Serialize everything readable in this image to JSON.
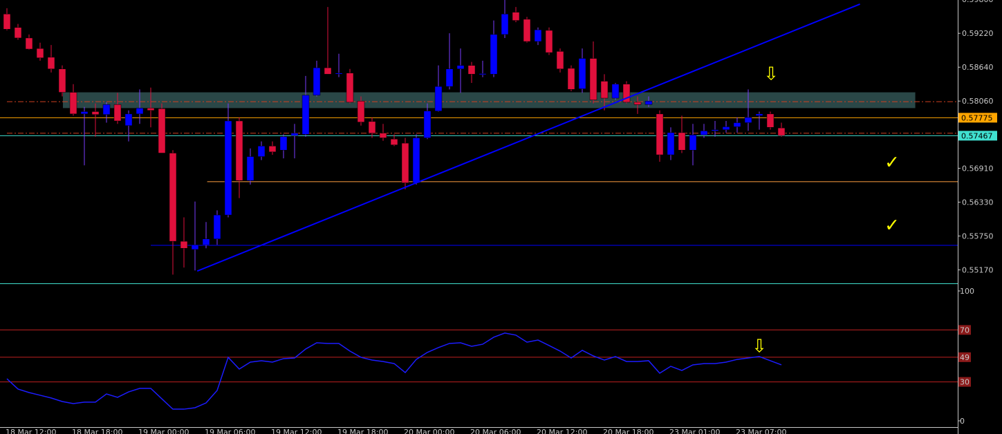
{
  "chart_data": [
    {
      "type": "candlestick",
      "bull_color": "#0000ff",
      "bear_color": "#e0103c",
      "categories": [
        "18 Mar 12:00",
        null,
        null,
        null,
        null,
        null,
        "18 Mar 18:00",
        null,
        null,
        null,
        null,
        null,
        "19 Mar 00:00",
        null,
        null,
        null,
        null,
        null,
        "19 Mar 06:00",
        null,
        null,
        null,
        null,
        null,
        "19 Mar 12:00",
        null,
        null,
        null,
        null,
        null,
        "19 Mar 18:00",
        null,
        null,
        null,
        null,
        null,
        "20 Mar 00:00",
        null,
        null,
        null,
        null,
        null,
        "20 Mar 06:00",
        null,
        null,
        null,
        null,
        null,
        "20 Mar 12:00",
        null,
        null,
        null,
        null,
        null,
        "20 Mar 18:00",
        null,
        null,
        null,
        null,
        null,
        "23 Mar 01:00",
        null,
        null,
        null,
        null,
        null,
        "23 Mar 07:00",
        null,
        null,
        null,
        null
      ],
      "open": [
        0.5955,
        0.5932,
        0.5914,
        0.5896,
        0.5881,
        0.5861,
        0.5821,
        0.5784,
        0.5788,
        0.5783,
        0.58,
        0.5764,
        0.5784,
        0.5794,
        0.5793,
        0.5717,
        0.5566,
        0.5552,
        0.556,
        0.557,
        0.5611,
        0.5772,
        0.567,
        0.5711,
        0.5729,
        0.5722,
        0.5747,
        0.5749,
        0.5816,
        0.5863,
        0.5853,
        0.5854,
        0.5806,
        0.5771,
        0.5751,
        0.5741,
        0.5734,
        0.5666,
        0.5743,
        0.5789,
        0.5831,
        0.5861,
        0.5867,
        0.5852,
        0.5852,
        0.592,
        0.5958,
        0.5946,
        0.5908,
        0.5927,
        0.5891,
        0.5862,
        0.5827,
        0.5879,
        0.584,
        0.5811,
        0.5835,
        0.5804,
        0.58,
        0.5784,
        0.5714,
        0.5752,
        0.5722,
        0.5748,
        0.5755,
        0.5757,
        0.5762,
        0.5769,
        0.5781,
        0.5784,
        0.576
      ],
      "high": [
        0.5965,
        0.5938,
        0.592,
        0.5906,
        0.5902,
        0.5867,
        0.5835,
        0.5796,
        0.5802,
        0.5804,
        0.582,
        0.579,
        0.5826,
        0.5829,
        0.5802,
        0.5722,
        0.5607,
        0.5634,
        0.5599,
        0.5619,
        0.5802,
        0.5778,
        0.5725,
        0.5737,
        0.5737,
        0.5749,
        0.5767,
        0.5849,
        0.5875,
        0.5967,
        0.5887,
        0.5861,
        0.5814,
        0.5778,
        0.5767,
        0.5749,
        0.5743,
        0.5749,
        0.5802,
        0.5867,
        0.5922,
        0.5896,
        0.5873,
        0.5875,
        0.5944,
        0.5979,
        0.5967,
        0.595,
        0.5932,
        0.5932,
        0.5896,
        0.5867,
        0.5896,
        0.5908,
        0.5852,
        0.5837,
        0.584,
        0.5814,
        0.5814,
        0.579,
        0.5761,
        0.5781,
        0.5767,
        0.5767,
        0.5772,
        0.5772,
        0.5778,
        0.5826,
        0.5788,
        0.5788,
        0.5769
      ],
      "low": [
        0.5927,
        0.5911,
        0.5894,
        0.5875,
        0.5855,
        0.5814,
        0.5781,
        0.5696,
        0.5745,
        0.5769,
        0.5767,
        0.5737,
        0.5767,
        0.5761,
        0.5717,
        0.5509,
        0.5521,
        0.5516,
        0.5554,
        0.556,
        0.5607,
        0.564,
        0.5663,
        0.5705,
        0.5714,
        0.5708,
        0.5708,
        0.5745,
        0.5814,
        0.5852,
        0.5847,
        0.5802,
        0.5764,
        0.5743,
        0.5738,
        0.5729,
        0.5655,
        0.5663,
        0.5741,
        0.5788,
        0.5826,
        0.582,
        0.5837,
        0.5847,
        0.5847,
        0.5914,
        0.5941,
        0.5906,
        0.5902,
        0.5885,
        0.5855,
        0.5823,
        0.582,
        0.5802,
        0.579,
        0.5808,
        0.5802,
        0.5784,
        0.5796,
        0.5702,
        0.5705,
        0.5717,
        0.5696,
        0.5743,
        0.5745,
        0.5752,
        0.5752,
        0.5755,
        0.5757,
        0.5757,
        0.5745
      ],
      "close": [
        0.5929,
        0.5914,
        0.5895,
        0.588,
        0.5861,
        0.5821,
        0.5784,
        0.5788,
        0.5783,
        0.58,
        0.5772,
        0.5784,
        0.5794,
        0.579,
        0.5717,
        0.5566,
        0.5554,
        0.556,
        0.557,
        0.5611,
        0.5772,
        0.567,
        0.5711,
        0.5729,
        0.5719,
        0.5745,
        0.5751,
        0.5816,
        0.5863,
        0.5852,
        0.5854,
        0.5804,
        0.577,
        0.5751,
        0.5743,
        0.5731,
        0.5666,
        0.5743,
        0.5789,
        0.5831,
        0.5861,
        0.5867,
        0.5852,
        0.5853,
        0.592,
        0.5955,
        0.5944,
        0.5908,
        0.5928,
        0.5889,
        0.5861,
        0.5826,
        0.5879,
        0.5808,
        0.5811,
        0.5835,
        0.5804,
        0.58,
        0.5806,
        0.5714,
        0.5752,
        0.5722,
        0.5748,
        0.5755,
        0.5757,
        0.5762,
        0.5769,
        0.5778,
        0.5784,
        0.5761,
        0.5747
      ],
      "ylim": [
        0.5494,
        0.5979
      ],
      "yticks": [
        {
          "value": 0.598,
          "label": "0.59800"
        },
        {
          "value": 0.5922,
          "label": "0.59220"
        },
        {
          "value": 0.5864,
          "label": "0.58640"
        },
        {
          "value": 0.5806,
          "label": "0.58060"
        },
        {
          "value": 0.5691,
          "label": "0.56910"
        },
        {
          "value": 0.5633,
          "label": "0.56330"
        },
        {
          "value": 0.5575,
          "label": "0.55750"
        },
        {
          "value": 0.5517,
          "label": "0.55170"
        }
      ],
      "price_lines": [
        {
          "value": 0.57775,
          "label": "0.57775",
          "color": "#ffa500"
        },
        {
          "value": 0.57467,
          "label": "0.57467",
          "color": "#40e0d0"
        }
      ],
      "hlines": [
        {
          "value": 0.5805,
          "color": "#d04020",
          "dash": "dashdot",
          "from": 0
        },
        {
          "value": 0.5751,
          "color": "#d04020",
          "dash": "dashdot",
          "from": 0
        },
        {
          "value": 0.5668,
          "color": "#ffa040",
          "dash": "solid",
          "from": 18.1
        },
        {
          "value": 0.5559,
          "color": "#0000ff",
          "dash": "solid",
          "from": 13
        }
      ],
      "zone": {
        "top": 0.5821,
        "bottom": 0.5794,
        "from": 5.06,
        "to": 82.1,
        "color": "#2f4f4f"
      },
      "trendline": {
        "x": [
          17.2,
          77.1
        ],
        "y": [
          0.5515,
          0.5972
        ],
        "color": "#0000ff"
      },
      "annotations": [
        {
          "text": "⇩",
          "color": "#ffff00"
        },
        {
          "text": "✓",
          "color": "#ffff00"
        },
        {
          "text": "✓",
          "color": "#ffff00"
        }
      ]
    },
    {
      "type": "line",
      "color": "#1c1cff",
      "level_color": "#c02020",
      "values": [
        32.4,
        24.5,
        21.8,
        19.7,
        17.6,
        14.9,
        13.3,
        14.4,
        14.4,
        20.7,
        18.1,
        22.3,
        25.0,
        25.0,
        17.0,
        9.0,
        9.0,
        10.1,
        13.8,
        23.4,
        48.9,
        39.9,
        45.2,
        46.3,
        45.2,
        47.9,
        48.4,
        55.3,
        60.1,
        59.6,
        59.6,
        53.7,
        48.9,
        46.8,
        45.7,
        44.1,
        37.2,
        47.3,
        52.7,
        56.4,
        59.6,
        60.1,
        57.4,
        59.0,
        64.4,
        67.6,
        66.0,
        60.6,
        62.2,
        58.0,
        53.7,
        48.4,
        54.3,
        50.0,
        46.8,
        49.5,
        45.7,
        45.7,
        46.3,
        36.7,
        42.0,
        38.8,
        43.1,
        44.1,
        44.1,
        45.2,
        47.3,
        48.4,
        49.5,
        46.3,
        43.1
      ],
      "ylim": [
        -4.8,
        104.8
      ],
      "yticks": [
        100,
        70,
        49,
        30,
        0
      ],
      "annotations": [
        {
          "text": "⇩",
          "color": "#ffff00"
        }
      ]
    }
  ]
}
